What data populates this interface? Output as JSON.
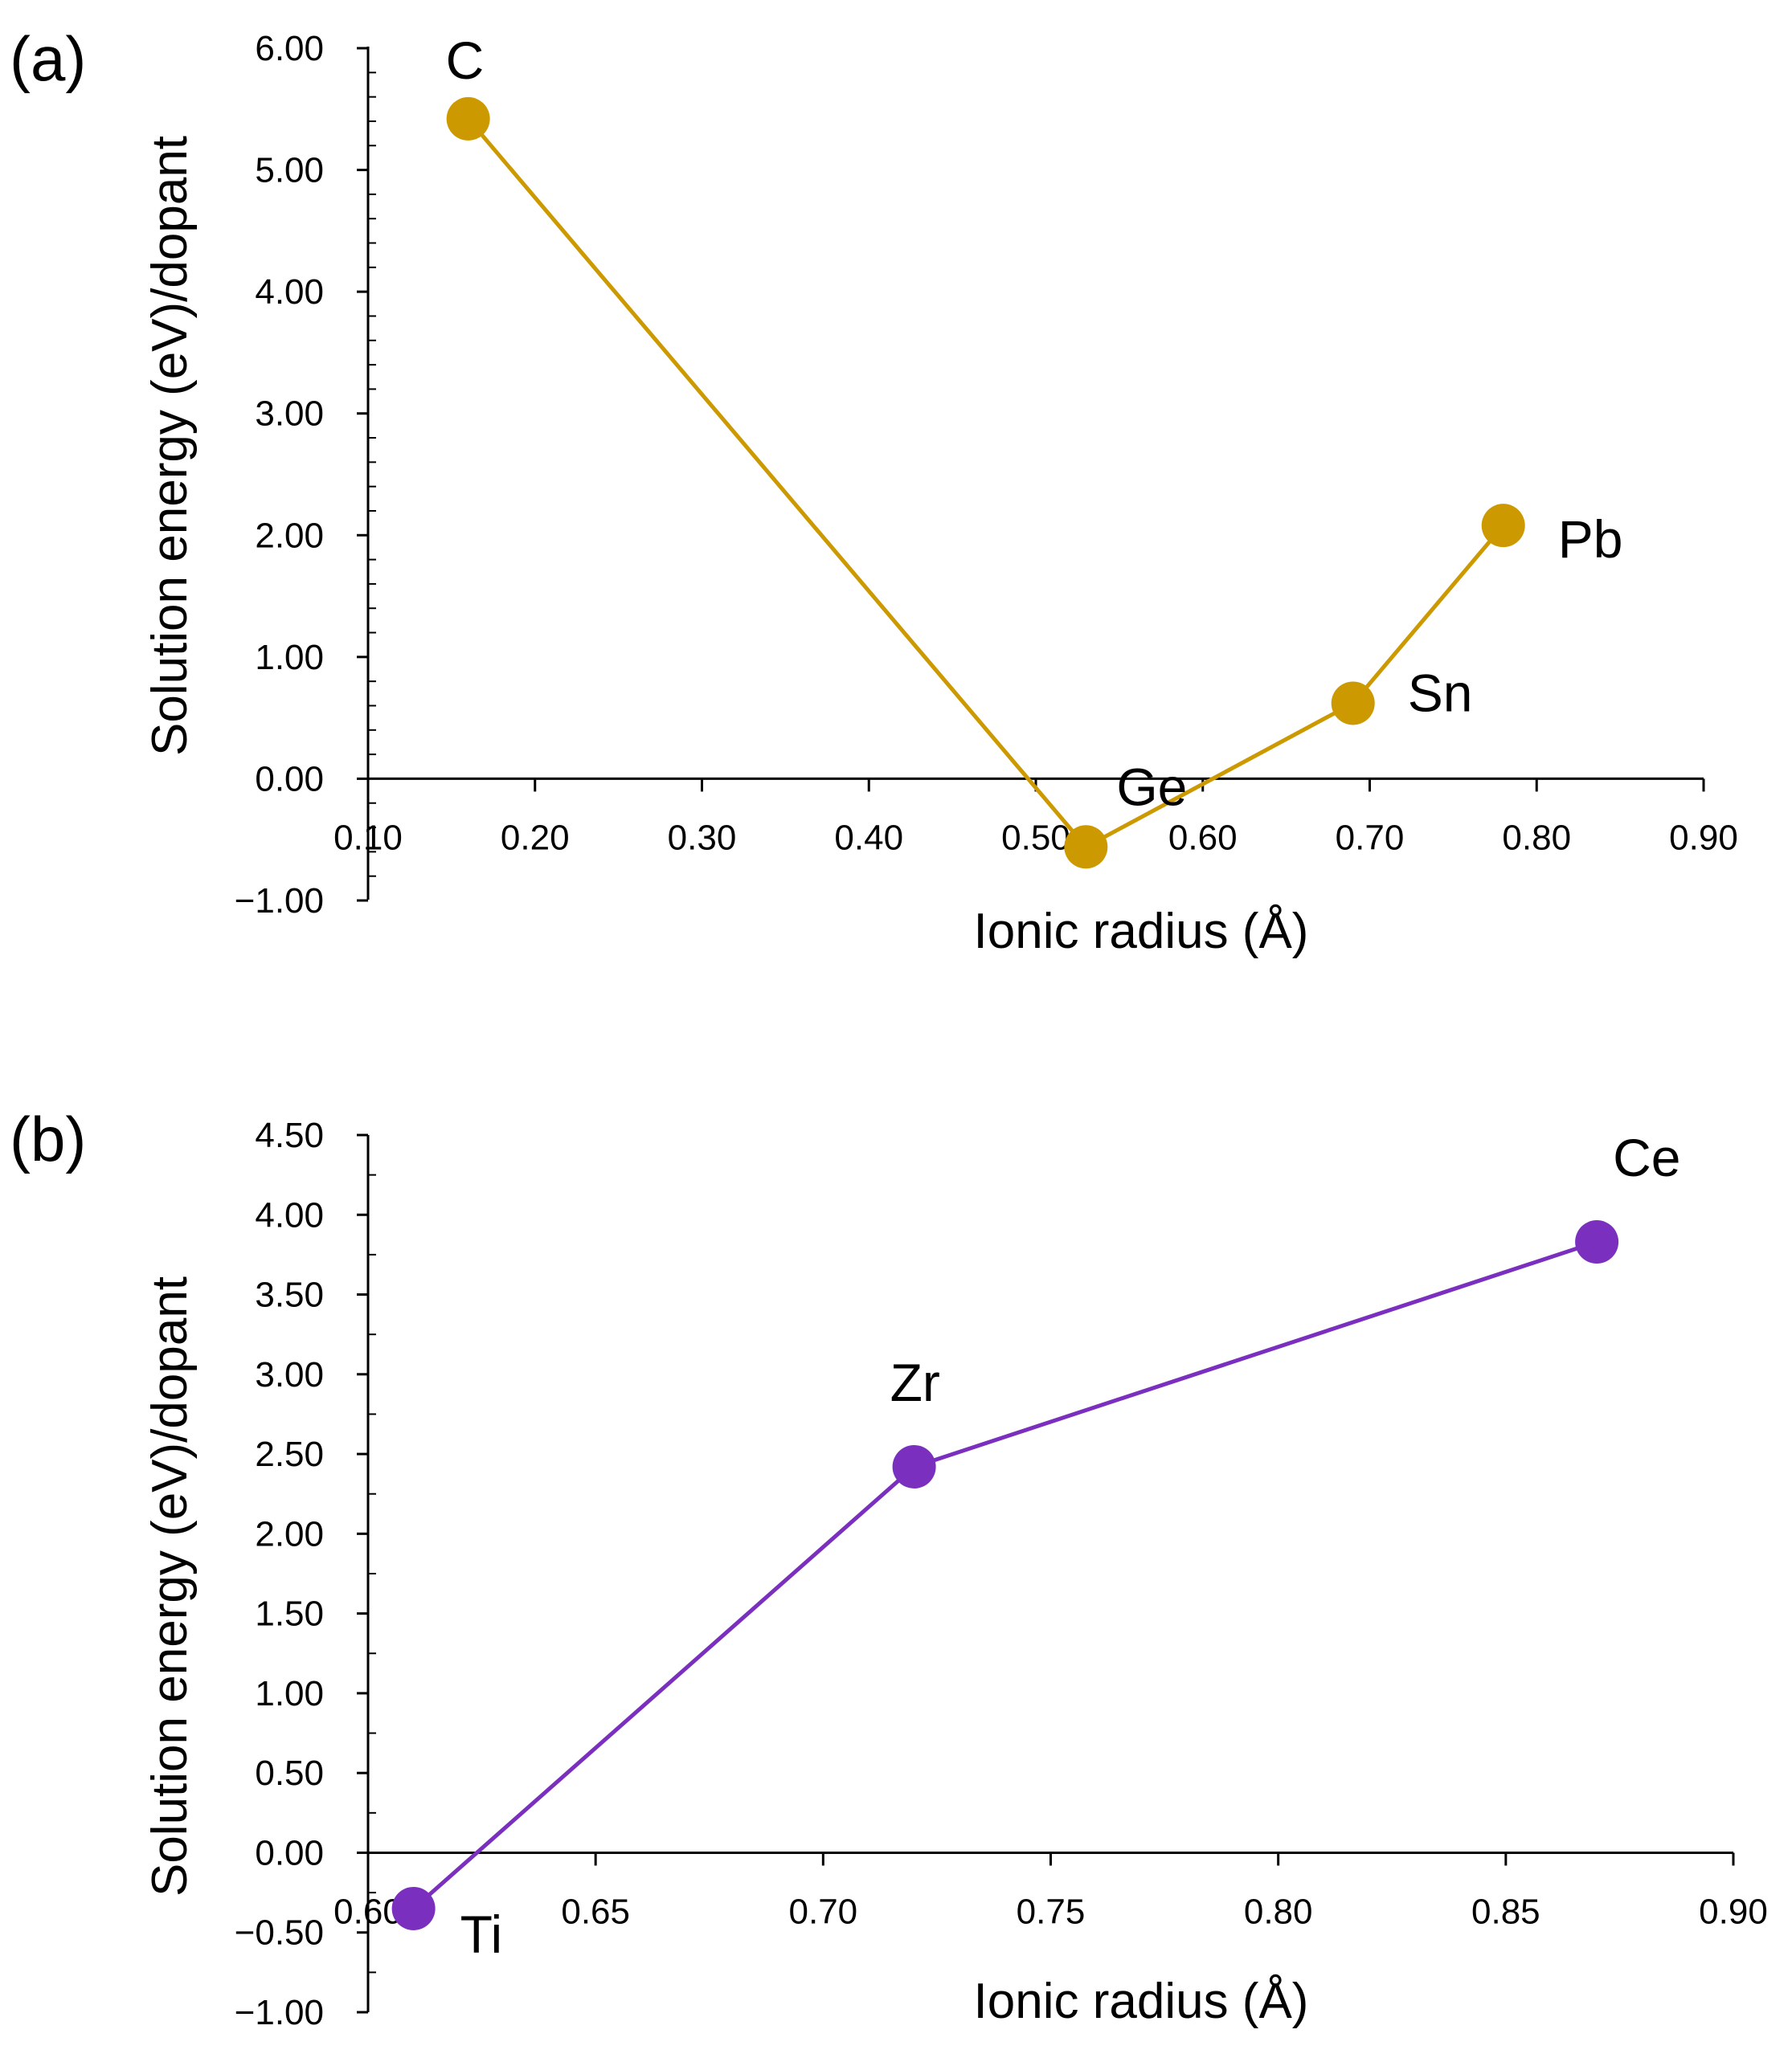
{
  "chart_data": [
    {
      "type": "line",
      "panel_label": "(a)",
      "color": "#CC9900",
      "x": [
        0.16,
        0.53,
        0.69,
        0.78
      ],
      "values": [
        5.42,
        -0.56,
        0.62,
        2.08
      ],
      "point_labels": [
        "C",
        "Ge",
        "Sn",
        "Pb"
      ],
      "xlabel": "Ionic radius (Å)",
      "ylabel": "Solution energy (eV)/dopant",
      "xlim": [
        0.1,
        0.9
      ],
      "ylim": [
        -1.0,
        6.0
      ],
      "x_ticks": [
        "0.10",
        "0.20",
        "0.30",
        "0.40",
        "0.50",
        "0.60",
        "0.70",
        "0.80",
        "0.90"
      ],
      "y_ticks": [
        "−1.00",
        "0.00",
        "1.00",
        "2.00",
        "3.00",
        "4.00",
        "5.00",
        "6.00"
      ],
      "grid": false,
      "legend": "none"
    },
    {
      "type": "line",
      "panel_label": "(b)",
      "color": "#7B2FBF",
      "x": [
        0.61,
        0.72,
        0.87
      ],
      "values": [
        -0.35,
        2.42,
        3.83
      ],
      "point_labels": [
        "Ti",
        "Zr",
        "Ce"
      ],
      "xlabel": "Ionic radius (Å)",
      "ylabel": "Solution energy (eV)/dopant",
      "xlim": [
        0.6,
        0.9
      ],
      "ylim": [
        -1.0,
        4.5
      ],
      "x_ticks": [
        "0.60",
        "0.65",
        "0.70",
        "0.75",
        "0.80",
        "0.85",
        "0.90"
      ],
      "y_ticks": [
        "−1.00",
        "−0.50",
        "0.00",
        "0.50",
        "1.00",
        "1.50",
        "2.00",
        "2.50",
        "3.00",
        "3.50",
        "4.00",
        "4.50"
      ],
      "grid": false,
      "legend": "none"
    }
  ]
}
